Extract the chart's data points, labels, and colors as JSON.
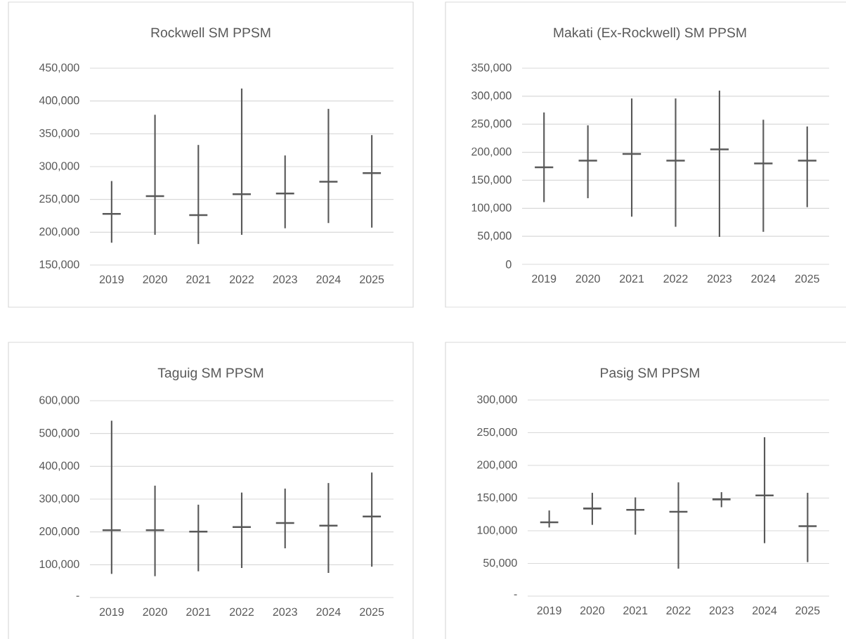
{
  "chart_data": [
    {
      "type": "candlestick",
      "title": "Rockwell SM PPSM",
      "categories": [
        "2019",
        "2020",
        "2021",
        "2022",
        "2023",
        "2024",
        "2025"
      ],
      "ohlc": [
        [
          228000,
          278000,
          184000,
          228000
        ],
        [
          255000,
          379000,
          196000,
          255000
        ],
        [
          226000,
          333000,
          182000,
          226000
        ],
        [
          258000,
          419000,
          196000,
          258000
        ],
        [
          259000,
          317000,
          206000,
          259000
        ],
        [
          277000,
          388000,
          214000,
          277000
        ],
        [
          290000,
          348000,
          207000,
          290000
        ]
      ],
      "color": "#595959",
      "ylim": [
        150000,
        450000
      ],
      "yticks": [
        {
          "value": 150000,
          "label": "150,000"
        },
        {
          "value": 200000,
          "label": "200,000"
        },
        {
          "value": 250000,
          "label": "250,000"
        },
        {
          "value": 300000,
          "label": "300,000"
        },
        {
          "value": 350000,
          "label": "350,000"
        },
        {
          "value": 400000,
          "label": "400,000"
        },
        {
          "value": 450000,
          "label": "450,000"
        }
      ],
      "grid": "y"
    },
    {
      "type": "candlestick",
      "title": "Makati (Ex-Rockwell) SM PPSM",
      "categories": [
        "2019",
        "2020",
        "2021",
        "2022",
        "2023",
        "2024",
        "2025"
      ],
      "ohlc": [
        [
          173000,
          271000,
          111000,
          173000
        ],
        [
          185000,
          248000,
          118000,
          185000
        ],
        [
          197000,
          296000,
          85000,
          197000
        ],
        [
          185000,
          296000,
          67000,
          185000
        ],
        [
          205000,
          310000,
          49000,
          205000
        ],
        [
          180000,
          258000,
          58000,
          180000
        ],
        [
          185000,
          246000,
          102000,
          185000
        ]
      ],
      "color": "#595959",
      "ylim": [
        0,
        350000
      ],
      "yticks": [
        0,
        {
          "value": 50000,
          "label": "50,000"
        },
        {
          "value": 100000,
          "label": "100,000"
        },
        {
          "value": 150000,
          "label": "150,000"
        },
        {
          "value": 200000,
          "label": "200,000"
        },
        {
          "value": 250000,
          "label": "250,000"
        },
        {
          "value": 300000,
          "label": "300,000"
        },
        {
          "value": 350000,
          "label": "350,000"
        }
      ],
      "grid": "y"
    },
    {
      "type": "candlestick",
      "title": "Taguig SM PPSM",
      "categories": [
        "2019",
        "2020",
        "2021",
        "2022",
        "2023",
        "2024",
        "2025"
      ],
      "ohlc": [
        [
          205000,
          539000,
          72000,
          205000
        ],
        [
          205000,
          341000,
          65000,
          205000
        ],
        [
          201000,
          283000,
          80000,
          201000
        ],
        [
          215000,
          320000,
          90000,
          215000
        ],
        [
          227000,
          332000,
          150000,
          227000
        ],
        [
          219000,
          349000,
          75000,
          219000
        ],
        [
          247000,
          381000,
          94000,
          247000
        ]
      ],
      "color": "#595959",
      "ylim": [
        0,
        600000
      ],
      "yticks": [
        {
          "value": 0,
          "label": "-"
        },
        {
          "value": 100000,
          "label": "100,000"
        },
        {
          "value": 200000,
          "label": "200,000"
        },
        {
          "value": 300000,
          "label": "300,000"
        },
        {
          "value": 400000,
          "label": "400,000"
        },
        {
          "value": 500000,
          "label": "500,000"
        },
        {
          "value": 600000,
          "label": "600,000"
        }
      ],
      "grid": "y"
    },
    {
      "type": "candlestick",
      "title": "Pasig SM PPSM",
      "categories": [
        "2019",
        "2020",
        "2021",
        "2022",
        "2023",
        "2024",
        "2025"
      ],
      "ohlc": [
        [
          113000,
          131000,
          105000,
          113000
        ],
        [
          134000,
          158000,
          109000,
          134000
        ],
        [
          132000,
          151000,
          94000,
          132000
        ],
        [
          129000,
          174000,
          42000,
          129000
        ],
        [
          148000,
          159000,
          136000,
          148000
        ],
        [
          154000,
          243000,
          81000,
          154000
        ],
        [
          107000,
          158000,
          52000,
          107000
        ]
      ],
      "color": "#595959",
      "ylim": [
        0,
        300000
      ],
      "yticks": [
        {
          "value": 0,
          "label": "-"
        },
        {
          "value": 50000,
          "label": "50,000"
        },
        {
          "value": 100000,
          "label": "100,000"
        },
        {
          "value": 150000,
          "label": "150,000"
        },
        {
          "value": 200000,
          "label": "200,000"
        },
        {
          "value": 250000,
          "label": "250,000"
        },
        {
          "value": 300000,
          "label": "300,000"
        }
      ],
      "grid": "y"
    }
  ]
}
